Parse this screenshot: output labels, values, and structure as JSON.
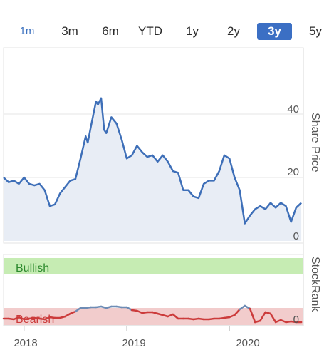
{
  "tabs": [
    {
      "label": "1m",
      "active": false
    },
    {
      "label": "3m",
      "active": false
    },
    {
      "label": "6m",
      "active": false
    },
    {
      "label": "YTD",
      "active": false
    },
    {
      "label": "1y",
      "active": false
    },
    {
      "label": "2y",
      "active": false
    },
    {
      "label": "3y",
      "active": true
    },
    {
      "label": "5y",
      "active": false
    }
  ],
  "colors": {
    "price_line": "#3e6fb8",
    "price_fill": "#e8edf5",
    "bullish_band": "#c6ecb3",
    "bearish_band": "#f2cccc",
    "bearish_line": "#cc3b3b",
    "bullish_line": "#6e8cb5",
    "active_tab": "#3b6fc4"
  },
  "chart_data": [
    {
      "type": "area",
      "ylabel": "Share Price",
      "y_ticks": [
        "40",
        "20",
        "0"
      ],
      "ylim": [
        0,
        50
      ],
      "xlim": [
        2017.8,
        2020.72
      ],
      "x_ticks": [
        "2018",
        "2019",
        "2020"
      ],
      "grid": true,
      "series": [
        {
          "x": [
            2017.8,
            2017.85,
            2017.9,
            2017.95,
            2018.0,
            2018.05,
            2018.1,
            2018.15,
            2018.2,
            2018.25,
            2018.3,
            2018.35,
            2018.4,
            2018.45,
            2018.5,
            2018.55,
            2018.6,
            2018.62,
            2018.65,
            2018.7,
            2018.72,
            2018.75,
            2018.78,
            2018.8,
            2018.85,
            2018.9,
            2018.95,
            2019.0,
            2019.05,
            2019.1,
            2019.15,
            2019.2,
            2019.25,
            2019.3,
            2019.35,
            2019.4,
            2019.45,
            2019.5,
            2019.55,
            2019.6,
            2019.65,
            2019.7,
            2019.75,
            2019.8,
            2019.85,
            2019.9,
            2019.95,
            2020.0,
            2020.05,
            2020.1,
            2020.15,
            2020.2,
            2020.25,
            2020.3,
            2020.35,
            2020.4,
            2020.45,
            2020.5,
            2020.55,
            2020.6,
            2020.65,
            2020.7
          ],
          "values": [
            20,
            18.5,
            19,
            18,
            20,
            18,
            17.5,
            18,
            16,
            11,
            11.5,
            15,
            17,
            19,
            19.5,
            26,
            33,
            31,
            36,
            44,
            43,
            45,
            35,
            34,
            39,
            37,
            32,
            26,
            27,
            30,
            28,
            26.5,
            27,
            25,
            27,
            25,
            22,
            21.5,
            16,
            16,
            14,
            13.5,
            18,
            19,
            19,
            22,
            27,
            26,
            20,
            16,
            5.5,
            8,
            10,
            11,
            10,
            12,
            10.5,
            12,
            11,
            6,
            10.5,
            12
          ]
        }
      ]
    },
    {
      "type": "line",
      "ylabel": "StockRank",
      "bands": [
        "Bullish",
        "Bearish"
      ],
      "y_ticks": [
        "0"
      ],
      "ylim": [
        0,
        100
      ],
      "x_ticks": [
        "2018",
        "2019",
        "2020"
      ],
      "series": [
        {
          "x": [
            2017.8,
            2017.85,
            2017.9,
            2017.95,
            2018.0,
            2018.05,
            2018.1,
            2018.15,
            2018.2,
            2018.25,
            2018.3,
            2018.35,
            2018.4,
            2018.45,
            2018.5,
            2018.55,
            2018.6,
            2018.65,
            2018.7,
            2018.75,
            2018.8,
            2018.85,
            2018.9,
            2018.95,
            2019.0,
            2019.05,
            2019.1,
            2019.15,
            2019.2,
            2019.25,
            2019.3,
            2019.35,
            2019.4,
            2019.45,
            2019.5,
            2019.55,
            2019.6,
            2019.65,
            2019.7,
            2019.75,
            2019.8,
            2019.85,
            2019.9,
            2019.95,
            2020.0,
            2020.05,
            2020.1,
            2020.15,
            2020.2,
            2020.25,
            2020.3,
            2020.35,
            2020.4,
            2020.45,
            2020.5,
            2020.55,
            2020.6,
            2020.65,
            2020.7
          ],
          "values": [
            10,
            10,
            9,
            12,
            9,
            10,
            11,
            10,
            9,
            12,
            11,
            11,
            13,
            17,
            20,
            25,
            25,
            26,
            26,
            27,
            25,
            27,
            27,
            26,
            26,
            22,
            21,
            18,
            19,
            19,
            17,
            15,
            13,
            16,
            10,
            10,
            10,
            9,
            10,
            9,
            9,
            10,
            10,
            11,
            12,
            15,
            23,
            28,
            24,
            5,
            7,
            19,
            17,
            5,
            8,
            5,
            6,
            5,
            5
          ]
        }
      ]
    }
  ]
}
